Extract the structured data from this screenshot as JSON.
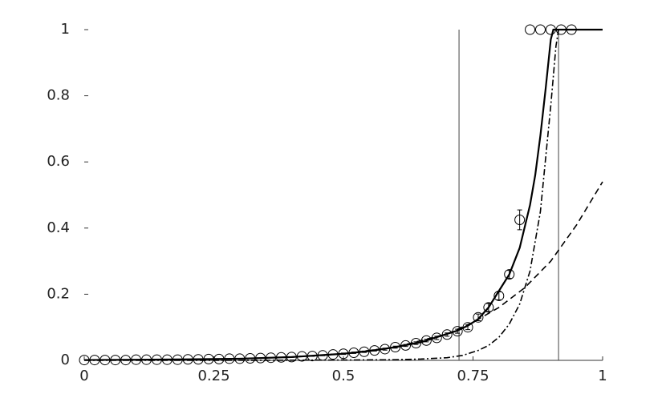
{
  "chart_data": {
    "type": "line",
    "xlim": [
      0,
      1
    ],
    "ylim": [
      0,
      1
    ],
    "xticks": [
      0,
      0.25,
      0.5,
      0.75,
      1
    ],
    "yticks": [
      0,
      0.2,
      0.4,
      0.6,
      0.8,
      1
    ],
    "vlines": [
      0.723,
      0.915
    ],
    "series": [
      {
        "style": "marker",
        "color": "#000000",
        "x": [
          0,
          0.02,
          0.04,
          0.06,
          0.08,
          0.1,
          0.12,
          0.14,
          0.16,
          0.18,
          0.2,
          0.22,
          0.24,
          0.26,
          0.28,
          0.3,
          0.32,
          0.34,
          0.36,
          0.38,
          0.4,
          0.42,
          0.44,
          0.46,
          0.48,
          0.5,
          0.52,
          0.54,
          0.56,
          0.58,
          0.6,
          0.62,
          0.64,
          0.66,
          0.68,
          0.7,
          0.72,
          0.74,
          0.76,
          0.78,
          0.8,
          0.82,
          0.84,
          0.86,
          0.88,
          0.9,
          0.92,
          0.94
        ],
        "values": [
          0.001,
          0.001,
          0.001,
          0.001,
          0.001,
          0.002,
          0.002,
          0.002,
          0.002,
          0.002,
          0.003,
          0.003,
          0.004,
          0.004,
          0.005,
          0.005,
          0.006,
          0.007,
          0.008,
          0.009,
          0.01,
          0.012,
          0.013,
          0.015,
          0.018,
          0.02,
          0.023,
          0.026,
          0.03,
          0.034,
          0.04,
          0.045,
          0.052,
          0.06,
          0.068,
          0.078,
          0.088,
          0.1,
          0.13,
          0.16,
          0.195,
          0.26,
          0.425,
          1,
          1,
          1,
          1,
          1
        ],
        "errors": [
          0,
          0,
          0,
          0,
          0,
          0,
          0,
          0,
          0,
          0,
          0,
          0,
          0,
          0,
          0,
          0,
          0,
          0,
          0,
          0,
          0.001,
          0.001,
          0.001,
          0.001,
          0.001,
          0.002,
          0.002,
          0.002,
          0.002,
          0.003,
          0.003,
          0.003,
          0.004,
          0.004,
          0.005,
          0.005,
          0.006,
          0.007,
          0.01,
          0.012,
          0.012,
          0.012,
          0.03,
          0,
          0,
          0,
          0,
          0
        ]
      },
      {
        "style": "solid",
        "color": "#000000",
        "x": [
          0,
          0.1,
          0.2,
          0.3,
          0.4,
          0.5,
          0.55,
          0.6,
          0.65,
          0.7,
          0.72,
          0.74,
          0.76,
          0.78,
          0.8,
          0.82,
          0.84,
          0.86,
          0.87,
          0.88,
          0.89,
          0.9,
          0.905,
          1
        ],
        "values": [
          0.001,
          0.002,
          0.003,
          0.005,
          0.01,
          0.02,
          0.028,
          0.04,
          0.055,
          0.08,
          0.09,
          0.105,
          0.125,
          0.16,
          0.21,
          0.26,
          0.34,
          0.47,
          0.56,
          0.68,
          0.82,
          0.97,
          1,
          1
        ]
      },
      {
        "style": "dashed",
        "color": "#000000",
        "x": [
          0,
          0.1,
          0.2,
          0.3,
          0.4,
          0.5,
          0.6,
          0.7,
          0.75,
          0.8,
          0.85,
          0.9,
          0.95,
          1
        ],
        "values": [
          0.001,
          0.002,
          0.003,
          0.005,
          0.01,
          0.02,
          0.04,
          0.08,
          0.115,
          0.16,
          0.22,
          0.3,
          0.41,
          0.54
        ]
      },
      {
        "style": "dashdot",
        "color": "#000000",
        "x": [
          0,
          0.3,
          0.5,
          0.6,
          0.65,
          0.7,
          0.73,
          0.76,
          0.78,
          0.8,
          0.82,
          0.84,
          0.86,
          0.88,
          0.9,
          0.91,
          0.915,
          1
        ],
        "values": [
          0,
          0,
          0.001,
          0.002,
          0.004,
          0.008,
          0.015,
          0.03,
          0.045,
          0.07,
          0.11,
          0.17,
          0.27,
          0.45,
          0.77,
          0.95,
          1,
          1
        ]
      }
    ]
  }
}
